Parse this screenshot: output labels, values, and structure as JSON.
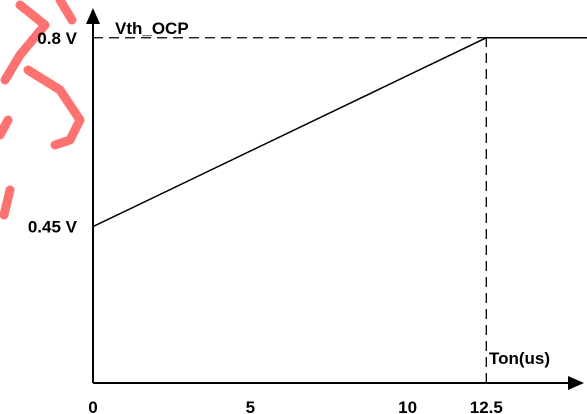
{
  "chart_data": {
    "type": "line",
    "title": "",
    "ylabel": "Vth_OCP",
    "xlabel": "Ton(us)",
    "x_ticks": [
      0,
      5,
      10,
      12.5
    ],
    "x_tick_labels": [
      "0",
      "5",
      "10",
      "12.5"
    ],
    "y_ticks": [
      0.45,
      0.8
    ],
    "y_tick_labels": [
      "0.45 V",
      "0.8 V"
    ],
    "xlim": [
      0,
      15.7
    ],
    "ylim": [
      0.16,
      0.87
    ],
    "series": [
      {
        "x": [
          0,
          12.5,
          15.7
        ],
        "y": [
          0.45,
          0.8,
          0.8
        ],
        "color": "#000000"
      }
    ],
    "reference_lines": [
      {
        "orientation": "horizontal",
        "value": 0.8,
        "from_x": 0,
        "to_x": 12.5,
        "style": "dashed"
      },
      {
        "orientation": "vertical",
        "value": 12.5,
        "from_y": 0.16,
        "to_y": 0.8,
        "style": "dashed"
      }
    ],
    "grid": false,
    "legend": "none"
  },
  "watermark_color": "#ff0000"
}
